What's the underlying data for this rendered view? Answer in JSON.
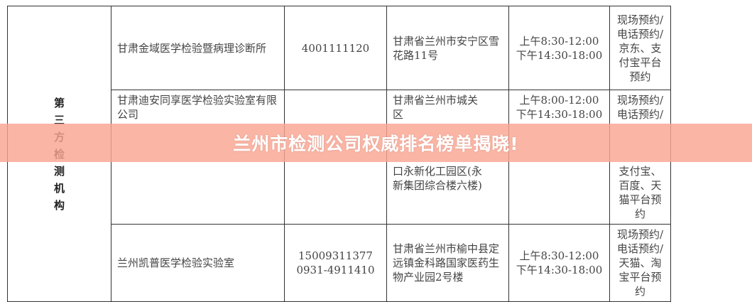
{
  "category": "第三方检测机构",
  "rows": [
    {
      "name": "甘肃金域医学检验暨病理诊断所",
      "phone": "4001111120",
      "address": "甘肃省兰州市安宁区雪花路11号",
      "hours": "上午8:30-12:00\n下午14:30-18:00",
      "booking": "现场预约/电话预约/京东、支付宝平台预约"
    },
    {
      "name": "甘肃迪安同享医学检验实验室有限公司",
      "phone": "",
      "address": "甘肃省兰州市城关\n区\n口永新化工园区(永\n新集团综合楼六楼)",
      "hours": "上午8:00-12:00\n下午14:30-18:00",
      "booking": "现场预约/电话预约/支付宝、百度、天猫平台预约"
    },
    {
      "name": "兰州凯普医学检验实验室",
      "phone": "15009311377\n0931-4911410",
      "address": "甘肃省兰州市榆中县定远镇金科路国家医药生物产业园2号楼",
      "hours": "上午8:30-12:00\n下午14:30-18:00",
      "booking": "现场预约/电话预约/天猫、淘宝平台预约"
    }
  ],
  "banner": {
    "title": "兰州市检测公司权威排名榜单揭晓!"
  }
}
